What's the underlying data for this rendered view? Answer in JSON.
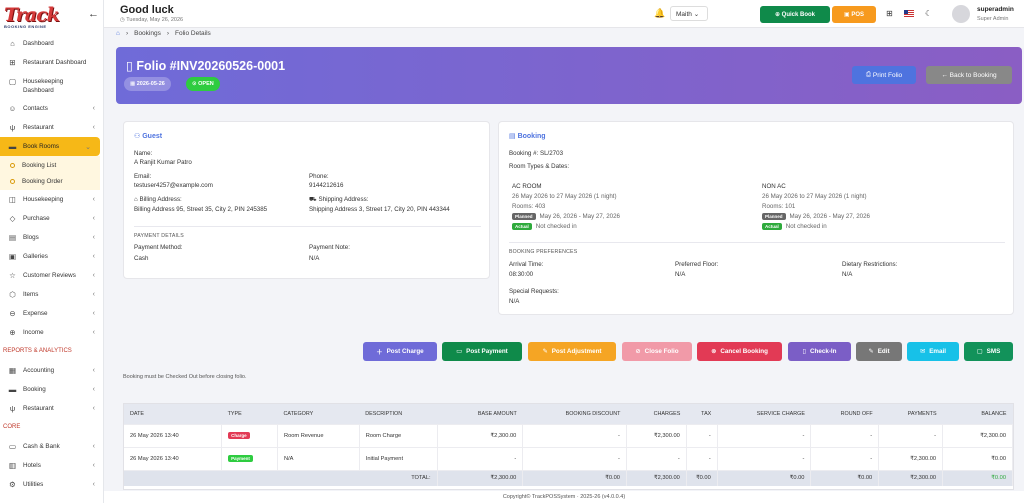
{
  "logo": {
    "text": "Track",
    "subtitle": "BOOKING ENGINE"
  },
  "sidebar": {
    "items": [
      {
        "label": "Dashboard",
        "icon": "home-icon"
      },
      {
        "label": "Restaurant Dashboard",
        "icon": "cutlery-icon"
      },
      {
        "label": "Housekeeping Dashboard",
        "icon": "broom-icon"
      },
      {
        "label": "Contacts",
        "icon": "contacts-icon"
      },
      {
        "label": "Restaurant",
        "icon": "fork-knife-icon"
      },
      {
        "label": "Book Rooms",
        "icon": "bed-icon"
      }
    ],
    "sub_items": [
      {
        "label": "Booking List"
      },
      {
        "label": "Booking Order"
      }
    ],
    "items2": [
      {
        "label": "Housekeeping"
      },
      {
        "label": "Purchase"
      },
      {
        "label": "Blogs"
      },
      {
        "label": "Galleries"
      },
      {
        "label": "Customer Reviews"
      },
      {
        "label": "Items"
      },
      {
        "label": "Expense"
      },
      {
        "label": "Income"
      }
    ],
    "section_reports": "REPORTS & ANALYTICS",
    "items3": [
      {
        "label": "Accounting"
      },
      {
        "label": "Booking"
      },
      {
        "label": "Restaurant"
      }
    ],
    "section_core": "CORE",
    "items4": [
      {
        "label": "Cash & Bank"
      },
      {
        "label": "Hotels"
      },
      {
        "label": "Utilities"
      }
    ]
  },
  "topbar": {
    "greeting": "Good luck",
    "date": "Tuesday, May 26, 2026",
    "lang": "Maith",
    "quick_book": "Quick Book",
    "pos": "POS",
    "user_name": "superadmin",
    "user_role": "Super Admin"
  },
  "breadcrumb": {
    "items": [
      "Bookings",
      "Folio Details"
    ]
  },
  "header": {
    "title": "Folio #INV20260526-0001",
    "date": "2026-05-26",
    "status": "OPEN",
    "print": "Print Folio",
    "back": "Back to Booking"
  },
  "guest": {
    "title": "Guest",
    "name_label": "Name:",
    "name": "A Ranjit Kumar Patro",
    "email_label": "Email:",
    "email": "testuser4257@example.com",
    "phone_label": "Phone:",
    "phone": "9144212616",
    "billing_label": "Billing Address:",
    "billing": "Billing Address 95, Street 35, City 2, PIN 245385",
    "shipping_label": "Shipping Address:",
    "shipping": "Shipping Address 3, Street 17, City 20, PIN 443344",
    "payment_details": "PAYMENT DETAILS",
    "method_label": "Payment Method:",
    "method": "Cash",
    "note_label": "Payment Note:",
    "note": "N/A"
  },
  "booking": {
    "title": "Booking",
    "number": "Booking #: SL/2703",
    "room_types_label": "Room Types & Dates:",
    "rooms": [
      {
        "type": "AC ROOM",
        "dates": "26 May 2026 to 27 May 2026 (1 night)",
        "rooms": "Rooms: 403",
        "planned_tag": "Planned",
        "planned": "May 26, 2026 - May 27, 2026",
        "actual_tag": "Actual",
        "actual": "Not checked in"
      },
      {
        "type": "NON AC",
        "dates": "26 May 2026 to 27 May 2026 (1 night)",
        "rooms": "Rooms: 101",
        "planned_tag": "Planned",
        "planned": "May 26, 2026 - May 27, 2026",
        "actual_tag": "Actual",
        "actual": "Not checked in"
      }
    ],
    "prefs": "BOOKING PREFERENCES",
    "arrival_label": "Arrival Time:",
    "arrival": "08:30:00",
    "floor_label": "Preferred Floor:",
    "floor": "N/A",
    "diet_label": "Dietary Restrictions:",
    "diet": "N/A",
    "special_label": "Special Requests:",
    "special": "N/A"
  },
  "actions": [
    {
      "label": "Post Charge",
      "color": "#6f6bd8",
      "icon": "plus-icon"
    },
    {
      "label": "Post Payment",
      "color": "#0f8a4a",
      "icon": "money-icon"
    },
    {
      "label": "Post Adjustment",
      "color": "#f5a524",
      "icon": "adjust-icon"
    },
    {
      "label": "Close Folio",
      "color": "#f19aa8",
      "icon": "check-circle-icon"
    },
    {
      "label": "Cancel Booking",
      "color": "#e23a55",
      "icon": "x-circle-icon"
    },
    {
      "label": "Check-In",
      "color": "#7b5ec6",
      "icon": "door-icon"
    },
    {
      "label": "Edit",
      "color": "#777",
      "icon": "edit-icon"
    },
    {
      "label": "Email",
      "color": "#17c1e8",
      "icon": "mail-icon"
    },
    {
      "label": "SMS",
      "color": "#12925a",
      "icon": "chat-icon"
    }
  ],
  "close_note": "Booking must be Checked Out before closing folio.",
  "table": {
    "headers": [
      "DATE",
      "TYPE",
      "CATEGORY",
      "DESCRIPTION",
      "BASE AMOUNT",
      "BOOKING DISCOUNT",
      "CHARGES",
      "TAX",
      "SERVICE CHARGE",
      "ROUND OFF",
      "PAYMENTS",
      "BALANCE"
    ],
    "rows": [
      {
        "date": "26 May 2026 13:40",
        "type": "Charge",
        "type_color": "#e23a55",
        "category": "Room Revenue",
        "description": "Room Charge",
        "base": "₹2,300.00",
        "discount": "-",
        "charges": "₹2,300.00",
        "tax": "-",
        "service": "-",
        "round": "-",
        "payments": "-",
        "balance": "₹2,300.00"
      },
      {
        "date": "26 May 2026 13:40",
        "type": "Payment",
        "type_color": "#2ecc40",
        "category": "N/A",
        "description": "Initial Payment",
        "base": "-",
        "discount": "-",
        "charges": "-",
        "tax": "-",
        "service": "-",
        "round": "-",
        "payments": "₹2,300.00",
        "balance": "₹0.00"
      }
    ],
    "total": {
      "label": "TOTAL:",
      "base": "₹2,300.00",
      "discount": "₹0.00",
      "charges": "₹2,300.00",
      "tax": "₹0.00",
      "service": "₹0.00",
      "round": "₹0.00",
      "payments": "₹2,300.00",
      "balance": "₹0.00"
    }
  },
  "footer": "Copyright© TrackPOSSystem · 2025-26 (v4.0.0.4)"
}
